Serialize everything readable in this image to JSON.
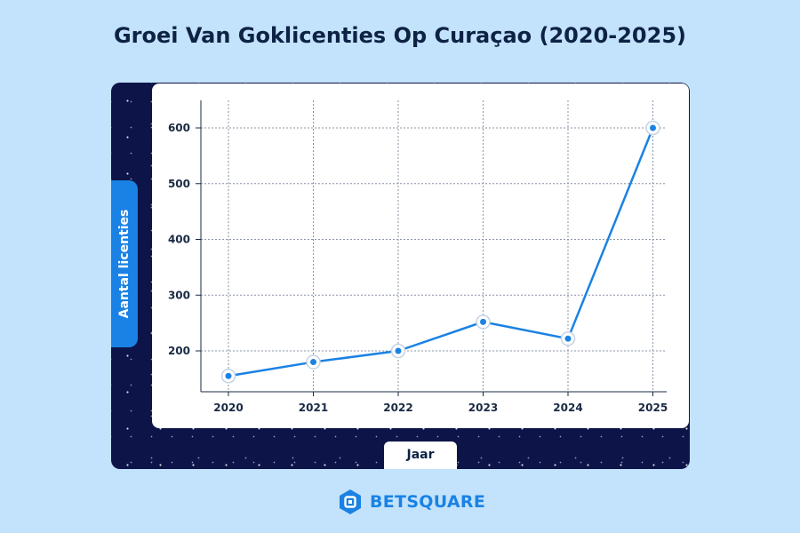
{
  "title": "Groei Van Goklicenties Op Curaçao (2020-2025)",
  "brand": {
    "name": "BETSQUARE",
    "icon": "betsquare-hexagon-logo-icon"
  },
  "colors": {
    "line": "#1a82e4",
    "background": "#c3e2fb",
    "panel": "#0d1448",
    "text": "#0d2244"
  },
  "chart_data": {
    "type": "line",
    "title": "Groei Van Goklicenties Op Curaçao (2020-2025)",
    "xlabel": "Jaar",
    "ylabel": "Aantal licenties",
    "categories": [
      "2020",
      "2021",
      "2022",
      "2023",
      "2024",
      "2025"
    ],
    "series": [
      {
        "values": [
          155,
          180,
          200,
          252,
          222,
          600
        ]
      }
    ],
    "yticks": [
      200,
      300,
      400,
      500,
      600
    ],
    "ylim": [
      130,
      650
    ],
    "grid": true,
    "legend": "none"
  }
}
